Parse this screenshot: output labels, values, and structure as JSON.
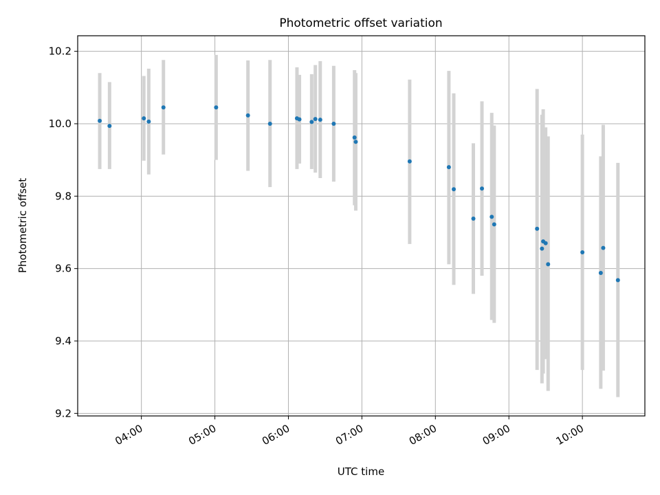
{
  "chart_data": {
    "type": "scatter",
    "title": "Photometric offset variation",
    "xlabel": "UTC time",
    "ylabel": "Photometric offset",
    "x_tick_labels": [
      "04:00",
      "05:00",
      "06:00",
      "07:00",
      "08:00",
      "09:00",
      "10:00"
    ],
    "x_tick_values": [
      240,
      300,
      360,
      420,
      480,
      540,
      600
    ],
    "xlim": [
      188,
      651
    ],
    "y_tick_labels": [
      "9.2",
      "9.4",
      "9.6",
      "9.8",
      "10.0",
      "10.2"
    ],
    "y_tick_values": [
      9.2,
      9.4,
      9.6,
      9.8,
      10.0,
      10.2
    ],
    "ylim": [
      9.193,
      10.243
    ],
    "grid": true,
    "point_color": "#1f77b4",
    "errorbar_color": "#d3d3d3",
    "points": [
      {
        "t": "03:26",
        "y": 10.008,
        "lo": 9.875,
        "hi": 10.14
      },
      {
        "t": "03:34",
        "y": 9.994,
        "lo": 9.875,
        "hi": 10.115
      },
      {
        "t": "04:02",
        "y": 10.015,
        "lo": 9.898,
        "hi": 10.132
      },
      {
        "t": "04:06",
        "y": 10.006,
        "lo": 9.86,
        "hi": 10.152
      },
      {
        "t": "04:18",
        "y": 10.045,
        "lo": 9.915,
        "hi": 10.176
      },
      {
        "t": "05:01",
        "y": 10.045,
        "lo": 9.9,
        "hi": 10.19
      },
      {
        "t": "05:27",
        "y": 10.023,
        "lo": 9.87,
        "hi": 10.175
      },
      {
        "t": "05:45",
        "y": 10.0,
        "lo": 9.825,
        "hi": 10.176
      },
      {
        "t": "06:07",
        "y": 10.015,
        "lo": 9.875,
        "hi": 10.156
      },
      {
        "t": "06:09",
        "y": 10.012,
        "lo": 9.89,
        "hi": 10.135
      },
      {
        "t": "06:19",
        "y": 10.005,
        "lo": 9.875,
        "hi": 10.137
      },
      {
        "t": "06:22",
        "y": 10.013,
        "lo": 9.865,
        "hi": 10.162
      },
      {
        "t": "06:26",
        "y": 10.011,
        "lo": 9.85,
        "hi": 10.173
      },
      {
        "t": "06:37",
        "y": 10.0,
        "lo": 9.84,
        "hi": 10.16
      },
      {
        "t": "06:54",
        "y": 9.962,
        "lo": 9.775,
        "hi": 10.148
      },
      {
        "t": "06:55",
        "y": 9.95,
        "lo": 9.76,
        "hi": 10.14
      },
      {
        "t": "07:39",
        "y": 9.896,
        "lo": 9.668,
        "hi": 10.122
      },
      {
        "t": "08:11",
        "y": 9.88,
        "lo": 9.612,
        "hi": 10.146
      },
      {
        "t": "08:15",
        "y": 9.819,
        "lo": 9.555,
        "hi": 10.084
      },
      {
        "t": "08:31",
        "y": 9.738,
        "lo": 9.53,
        "hi": 9.946
      },
      {
        "t": "08:38",
        "y": 9.821,
        "lo": 9.58,
        "hi": 10.062
      },
      {
        "t": "08:46",
        "y": 9.743,
        "lo": 9.458,
        "hi": 10.03
      },
      {
        "t": "08:48",
        "y": 9.722,
        "lo": 9.45,
        "hi": 9.995
      },
      {
        "t": "09:23",
        "y": 9.71,
        "lo": 9.32,
        "hi": 10.096
      },
      {
        "t": "09:27",
        "y": 9.655,
        "lo": 9.283,
        "hi": 10.025
      },
      {
        "t": "09:28",
        "y": 9.675,
        "lo": 9.31,
        "hi": 10.04
      },
      {
        "t": "09:30",
        "y": 9.67,
        "lo": 9.35,
        "hi": 9.99
      },
      {
        "t": "09:32",
        "y": 9.612,
        "lo": 9.262,
        "hi": 9.965
      },
      {
        "t": "10:00",
        "y": 9.645,
        "lo": 9.32,
        "hi": 9.97
      },
      {
        "t": "10:15",
        "y": 9.588,
        "lo": 9.268,
        "hi": 9.91
      },
      {
        "t": "10:17",
        "y": 9.657,
        "lo": 9.318,
        "hi": 9.997
      },
      {
        "t": "10:29",
        "y": 9.568,
        "lo": 9.245,
        "hi": 9.892
      }
    ]
  }
}
